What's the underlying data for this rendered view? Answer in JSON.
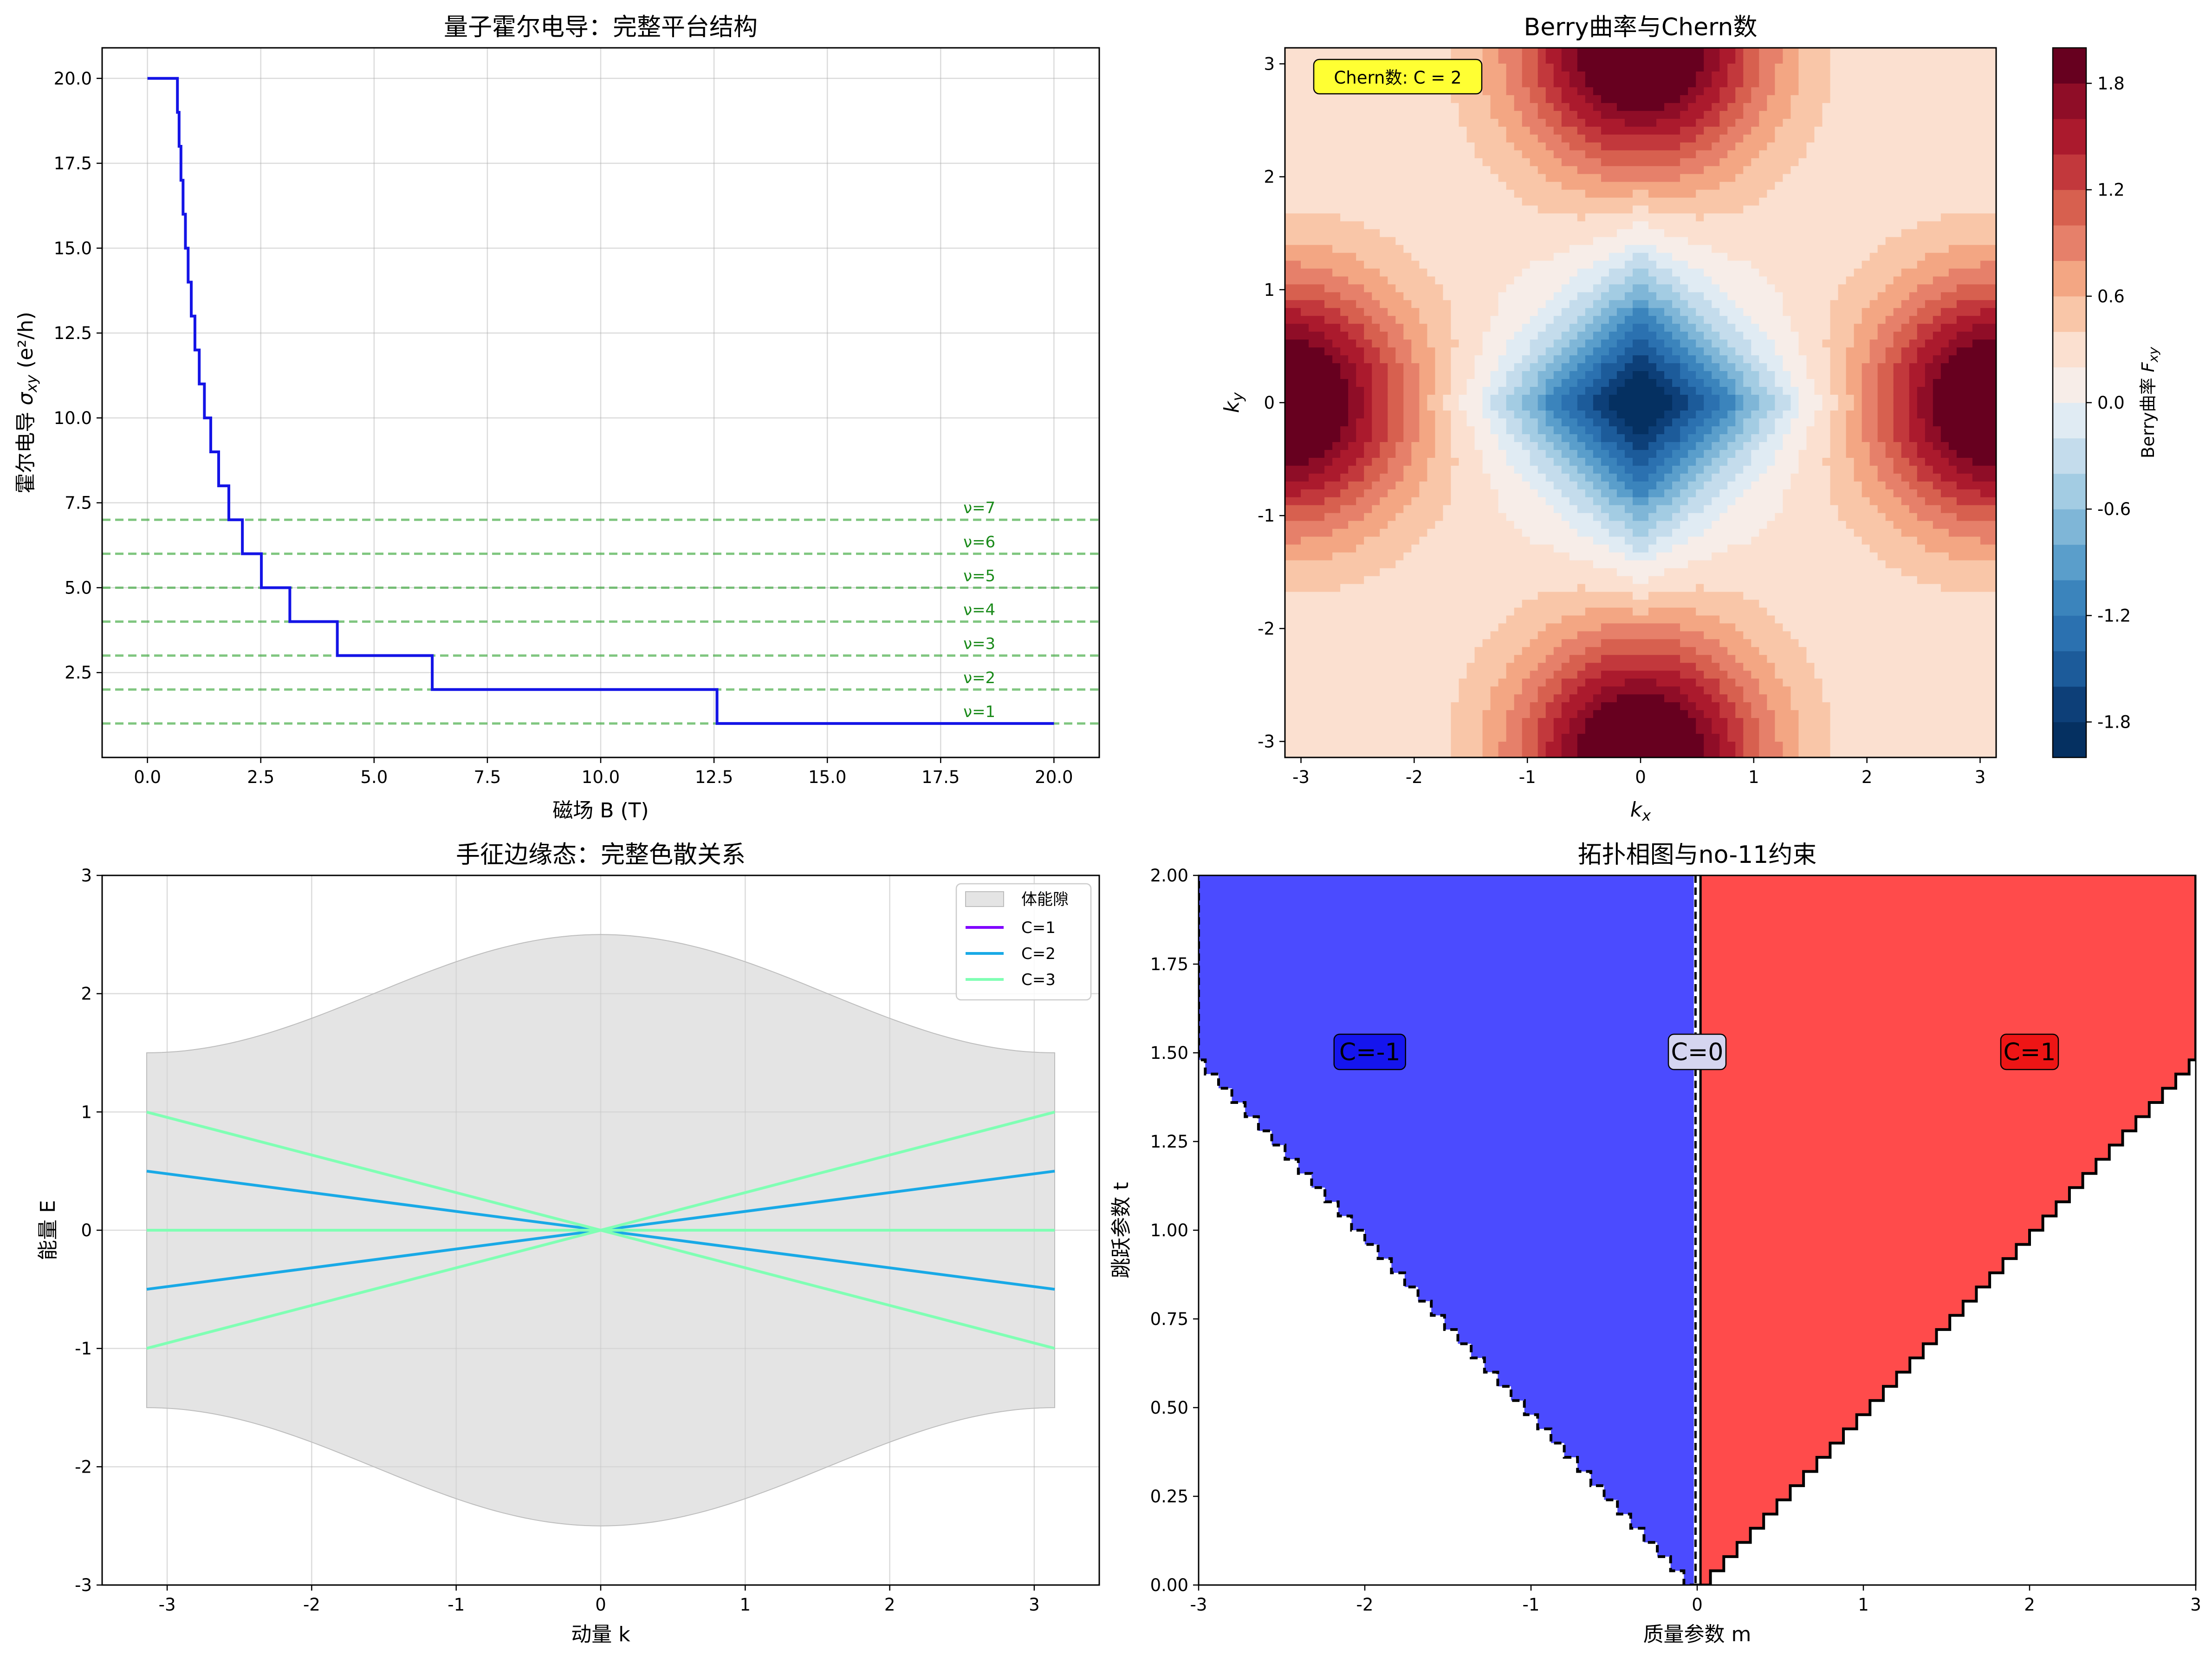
{
  "chart_data": [
    {
      "type": "line",
      "title": "量子霍尔电导：完整平台结构",
      "xlabel": "磁场 B (T)",
      "ylabel_prefix": "霍尔电导 ",
      "ylabel_sym": "σ",
      "ylabel_sub": "xy",
      "ylabel_suffix": " (e²/h)",
      "xlim": [
        -1.0,
        21.0
      ],
      "ylim": [
        0.0,
        20.9
      ],
      "xticks": [
        "0.0",
        "2.5",
        "5.0",
        "7.5",
        "10.0",
        "12.5",
        "15.0",
        "17.5",
        "20.0"
      ],
      "xtick_values": [
        0,
        2.5,
        5,
        7.5,
        10,
        12.5,
        15,
        17.5,
        20
      ],
      "yticks": [
        "2.5",
        "5.0",
        "7.5",
        "10.0",
        "12.5",
        "15.0",
        "17.5",
        "20.0"
      ],
      "ytick_values": [
        2.5,
        5,
        7.5,
        10,
        12.5,
        15,
        17.5,
        20
      ],
      "grid": true,
      "color": "#1414e6",
      "plateau_series": {
        "name": "σxy",
        "steps_B": [
          0.6283,
          0.6614,
          0.6981,
          0.7392,
          0.7854,
          0.8378,
          0.8976,
          0.9666,
          1.0472,
          1.1424,
          1.2566,
          1.3963,
          1.5708,
          1.7952,
          2.0944,
          2.5133,
          3.1416,
          4.1888,
          6.2832,
          12.5664
        ],
        "values_nu": [
          20,
          19,
          18,
          17,
          16,
          15,
          14,
          13,
          12,
          11,
          10,
          9,
          8,
          7,
          6,
          5,
          4,
          3,
          2,
          1
        ],
        "x_end": 20.0
      },
      "reference_lines": {
        "values": [
          1,
          2,
          3,
          4,
          5,
          6,
          7
        ],
        "labels": [
          "ν=1",
          "ν=2",
          "ν=3",
          "ν=4",
          "ν=5",
          "ν=6",
          "ν=7"
        ],
        "label_x": 18.0,
        "color": "#2ca02c"
      }
    },
    {
      "type": "heatmap",
      "title": "Berry曲率与Chern数",
      "xlabel": "k",
      "xlabel_sub": "x",
      "ylabel": "k",
      "ylabel_sub": "y",
      "xlim": [
        -3.1416,
        3.1416
      ],
      "ylim": [
        -3.1416,
        3.1416
      ],
      "xticks": [
        "-3",
        "-2",
        "-1",
        "0",
        "1",
        "2",
        "3"
      ],
      "xtick_values": [
        -3,
        -2,
        -1,
        0,
        1,
        2,
        3
      ],
      "yticks": [
        "-3",
        "-2",
        "-1",
        "0",
        "1",
        "2",
        "3"
      ],
      "ytick_values": [
        -3,
        -2,
        -1,
        0,
        1,
        2,
        3
      ],
      "colormap": "RdBu_r",
      "value_range": [
        -2.0,
        2.0
      ],
      "contour_levels": 20,
      "features": {
        "center_minimum": {
          "k": [
            0,
            0
          ],
          "value": -2.0
        },
        "edge_maxima": [
          [
            0,
            3.1416
          ],
          [
            0,
            -3.1416
          ],
          [
            3.1416,
            0
          ],
          [
            -3.1416,
            0
          ]
        ],
        "edge_max_value": 2.0
      },
      "annotation": "Chern数: C = 2",
      "colorbar": {
        "label_prefix": "Berry曲率 ",
        "label_sym": "F",
        "label_sub": "xy",
        "ticks": [
          "-1.8",
          "-1.2",
          "-0.6",
          "0.0",
          "0.6",
          "1.2",
          "1.8"
        ],
        "tick_values": [
          -1.8,
          -1.2,
          -0.6,
          0.0,
          0.6,
          1.2,
          1.8
        ]
      }
    },
    {
      "type": "line",
      "title": "手征边缘态：完整色散关系",
      "xlabel": "动量 k",
      "ylabel": "能量 E",
      "xlim": [
        -3.45,
        3.45
      ],
      "ylim": [
        -3.0,
        3.0
      ],
      "xticks": [
        "-3",
        "-2",
        "-1",
        "0",
        "1",
        "2",
        "3"
      ],
      "xtick_values": [
        -3,
        -2,
        -1,
        0,
        1,
        2,
        3
      ],
      "yticks": [
        "-3",
        "-2",
        "-1",
        "0",
        "1",
        "2",
        "3"
      ],
      "ytick_values": [
        -3,
        -2,
        -1,
        0,
        1,
        2,
        3
      ],
      "grid": true,
      "legend_placement": "upper-right",
      "band": {
        "name": "体能隙",
        "base": 1.5,
        "amplitude": 1.0,
        "k_range": [
          -3.1416,
          3.1416
        ],
        "color": "#d3d3d3"
      },
      "series": [
        {
          "name": "C=1",
          "color": "#7f00ff",
          "slopes": []
        },
        {
          "name": "C=2",
          "color": "#19a9e6",
          "slopes": [
            0.159,
            -0.159
          ]
        },
        {
          "name": "C=3",
          "color": "#80ffb4",
          "slopes": [
            0.318,
            0.0,
            -0.318
          ]
        }
      ],
      "k_range": [
        -3.1416,
        3.1416
      ]
    },
    {
      "type": "area",
      "title": "拓扑相图与no-11约束",
      "xlabel": "质量参数 m",
      "ylabel": "跳跃参数 t",
      "xlim": [
        -3.0,
        3.0
      ],
      "ylim": [
        0.0,
        2.0
      ],
      "xticks": [
        "-3",
        "-2",
        "-1",
        "0",
        "1",
        "2",
        "3"
      ],
      "xtick_values": [
        -3,
        -2,
        -1,
        0,
        1,
        2,
        3
      ],
      "yticks": [
        "0.00",
        "0.25",
        "0.50",
        "0.75",
        "1.00",
        "1.25",
        "1.50",
        "1.75",
        "2.00"
      ],
      "ytick_values": [
        0,
        0.25,
        0.5,
        0.75,
        1.0,
        1.25,
        1.5,
        1.75,
        2.0
      ],
      "boundary": "|m| = 2t",
      "regions": [
        {
          "label": "C=-1",
          "color": "#4b4bff",
          "label_at": [
            -1.97,
            1.5
          ],
          "box_color": "#1515ee"
        },
        {
          "label": "C=0",
          "color": "#ffffff",
          "label_at": [
            0.0,
            1.5
          ],
          "box_color": "#d5d5f0"
        },
        {
          "label": "C=1",
          "color": "#ff4b4b",
          "label_at": [
            2.0,
            1.5
          ],
          "box_color": "#ee1515"
        }
      ]
    }
  ]
}
